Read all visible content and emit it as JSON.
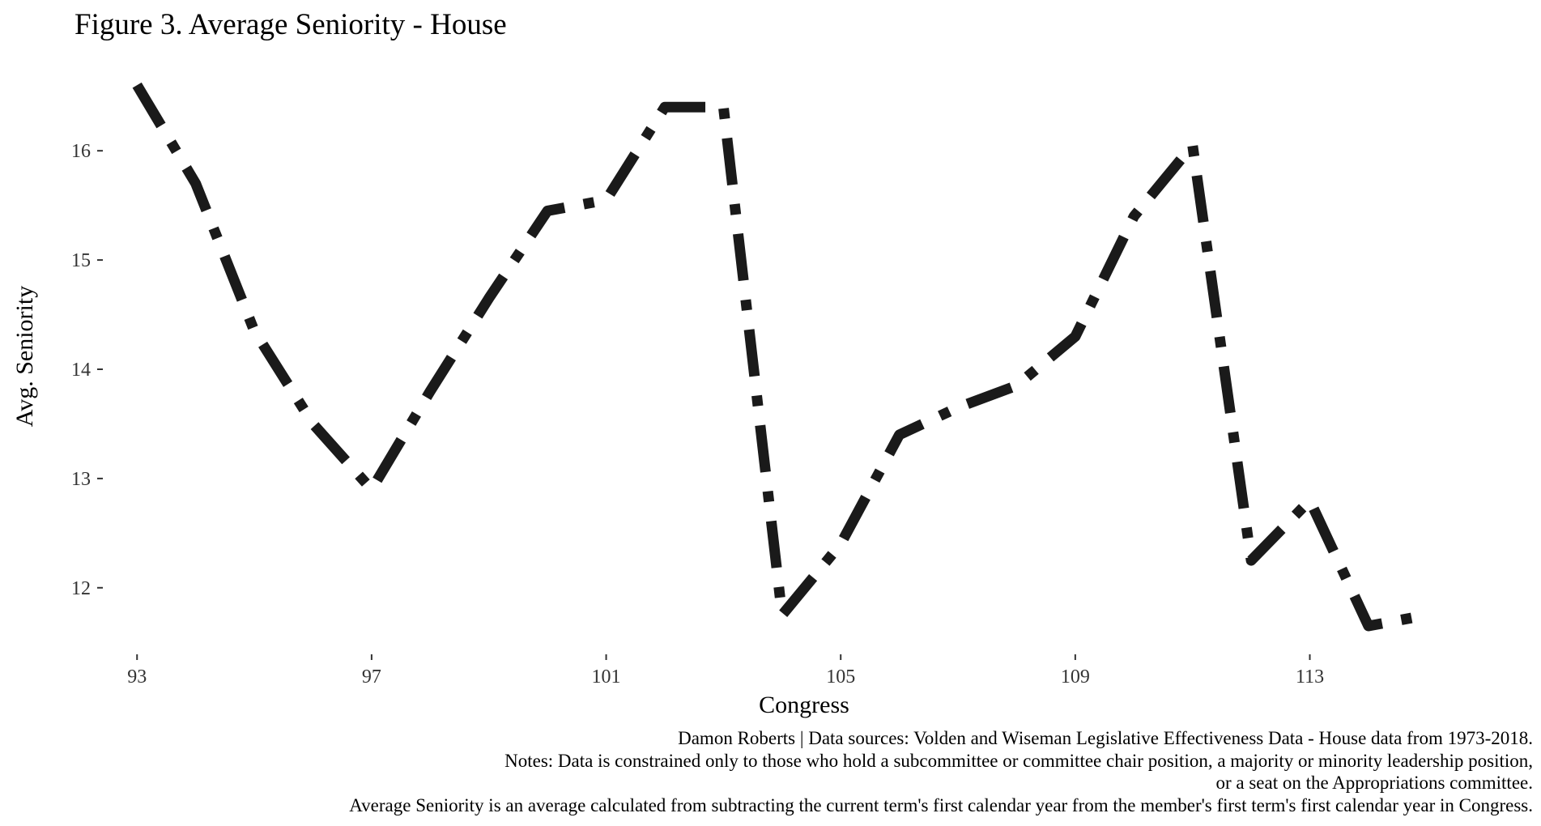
{
  "chart_data": {
    "type": "line",
    "title": "Figure 3. Average Seniority - House",
    "xlabel": "Congress",
    "ylabel": "Avg. Seniority",
    "xlim": [
      92.9,
      116.1
    ],
    "ylim": [
      11.45,
      16.75
    ],
    "xticks": [
      93,
      97,
      101,
      105,
      109,
      113
    ],
    "yticks": [
      12,
      13,
      14,
      15,
      16
    ],
    "grid": false,
    "line_style": "dashdot",
    "line_color": "#1a1a1a",
    "series": [
      {
        "x": [
          93,
          94,
          95,
          96,
          97,
          98,
          99,
          100,
          101,
          102,
          103,
          104,
          105,
          106,
          107,
          108,
          109,
          110,
          111,
          112,
          113,
          114,
          115
        ],
        "y": [
          16.6,
          15.7,
          14.35,
          13.5,
          12.9,
          13.8,
          14.65,
          15.45,
          15.55,
          16.4,
          16.4,
          11.75,
          12.4,
          13.4,
          13.65,
          13.85,
          14.3,
          15.4,
          16.05,
          12.25,
          12.8,
          11.65,
          11.75
        ]
      }
    ]
  },
  "caption": {
    "line1": "Damon Roberts | Data sources: Volden and Wiseman Legislative Effectiveness Data - House data from 1973-2018.",
    "line2": "Notes: Data is constrained only to those who hold a subcommittee or committee chair position, a majority or minority leadership position,",
    "line3": "or a seat on the Appropriations committee.",
    "line4": "Average Seniority is an average calculated from subtracting the current term's first calendar year from the member's first term's first calendar year in Congress."
  }
}
